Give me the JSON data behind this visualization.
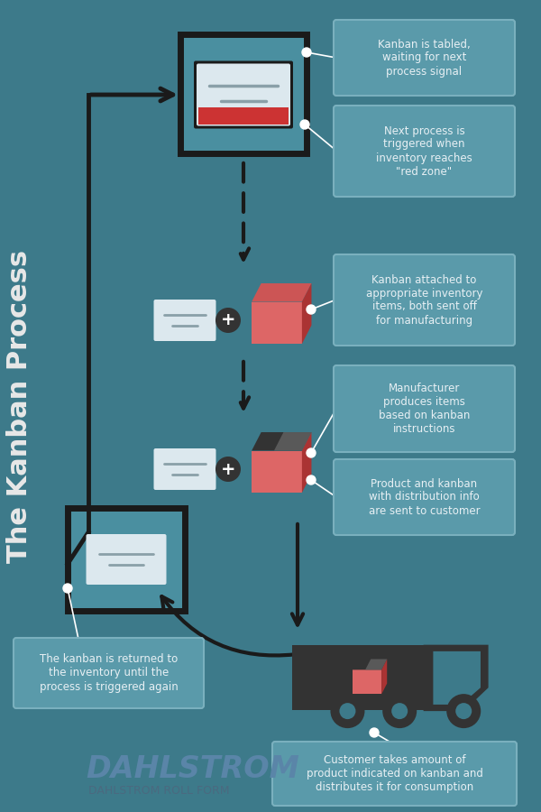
{
  "bg_color": "#3d7a8a",
  "title": "The Kanban Process",
  "title_color": "#e8e8e8",
  "arrow_color": "#1a1a1a",
  "box_border_color": "#1a1a1a",
  "box_bg_color": "#4a8fa0",
  "card_color": "#dce8ee",
  "card_line_color": "#8aa0a8",
  "red_color": "#cc3333",
  "pink_red": "#dd6666",
  "dark_gray": "#333333",
  "mid_gray": "#666666",
  "note_bg": "#5a9aaa",
  "note_border": "#7ab0be",
  "note_text": "#e8f0f4",
  "dahlstrom_color": "#5a85a8",
  "dahlstrom_sub_color": "#4a6a80",
  "annotations": [
    "Kanban is tabled,\nwaiting for next\nprocess signal",
    "Next process is\ntriggered when\ninventory reaches\n\"red zone\"",
    "Kanban attached to\nappropriate inventory\nitems, both sent off\nfor manufacturing",
    "Manufacturer\nproduces items\nbased on kanban\ninstructions",
    "Product and kanban\nwith distribution info\nare sent to customer",
    "Customer takes amount of\nproduct indicated on kanban and\ndistributes it for consumption",
    "The kanban is returned to\nthe inventory until the\nprocess is triggered again"
  ]
}
